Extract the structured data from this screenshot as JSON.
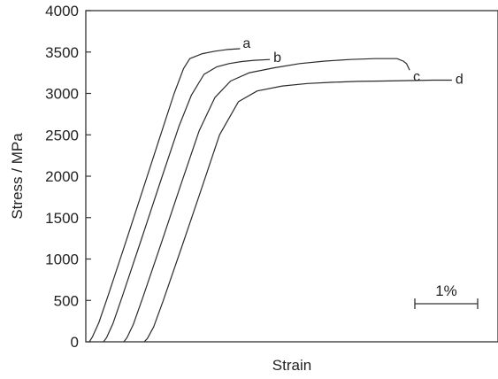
{
  "chart_data": {
    "type": "line",
    "xlabel": "Strain",
    "ylabel": "Stress / MPa",
    "ylim": [
      0,
      4000
    ],
    "yticks": [
      0,
      500,
      1000,
      1500,
      2000,
      2500,
      3000,
      3500,
      4000
    ],
    "x_tick_labels": "none",
    "grid": false,
    "legend": "none",
    "scale_bar": {
      "label": "1%",
      "length_strain_percent": 1.0
    },
    "x_units": "strain (%), curves offset horizontally",
    "series": [
      {
        "name": "a",
        "points": [
          [
            0.0,
            0
          ],
          [
            0.05,
            60
          ],
          [
            0.15,
            230
          ],
          [
            0.3,
            560
          ],
          [
            0.6,
            1250
          ],
          [
            0.9,
            1950
          ],
          [
            1.2,
            2650
          ],
          [
            1.35,
            3000
          ],
          [
            1.5,
            3300
          ],
          [
            1.6,
            3420
          ],
          [
            1.8,
            3480
          ],
          [
            2.0,
            3510
          ],
          [
            2.2,
            3530
          ],
          [
            2.4,
            3540
          ]
        ]
      },
      {
        "name": "b",
        "points": [
          [
            0.0,
            0
          ],
          [
            0.05,
            50
          ],
          [
            0.15,
            220
          ],
          [
            0.3,
            550
          ],
          [
            0.6,
            1230
          ],
          [
            0.9,
            1920
          ],
          [
            1.2,
            2600
          ],
          [
            1.4,
            2980
          ],
          [
            1.6,
            3230
          ],
          [
            1.8,
            3320
          ],
          [
            2.0,
            3360
          ],
          [
            2.2,
            3385
          ],
          [
            2.4,
            3400
          ],
          [
            2.65,
            3410
          ]
        ]
      },
      {
        "name": "c",
        "points": [
          [
            0.0,
            0
          ],
          [
            0.05,
            50
          ],
          [
            0.15,
            210
          ],
          [
            0.3,
            530
          ],
          [
            0.6,
            1200
          ],
          [
            0.9,
            1880
          ],
          [
            1.2,
            2550
          ],
          [
            1.45,
            2950
          ],
          [
            1.7,
            3150
          ],
          [
            2.0,
            3250
          ],
          [
            2.4,
            3310
          ],
          [
            2.8,
            3360
          ],
          [
            3.2,
            3390
          ],
          [
            3.6,
            3410
          ],
          [
            4.0,
            3420
          ],
          [
            4.35,
            3420
          ],
          [
            4.45,
            3390
          ],
          [
            4.5,
            3360
          ],
          [
            4.55,
            3280
          ]
        ]
      },
      {
        "name": "d",
        "points": [
          [
            0.0,
            0
          ],
          [
            0.05,
            40
          ],
          [
            0.15,
            180
          ],
          [
            0.3,
            490
          ],
          [
            0.6,
            1150
          ],
          [
            0.9,
            1820
          ],
          [
            1.2,
            2500
          ],
          [
            1.5,
            2900
          ],
          [
            1.8,
            3030
          ],
          [
            2.2,
            3090
          ],
          [
            2.6,
            3120
          ],
          [
            3.0,
            3135
          ],
          [
            3.4,
            3145
          ],
          [
            3.8,
            3150
          ],
          [
            4.2,
            3155
          ],
          [
            4.6,
            3160
          ],
          [
            4.9,
            3160
          ]
        ]
      }
    ]
  }
}
